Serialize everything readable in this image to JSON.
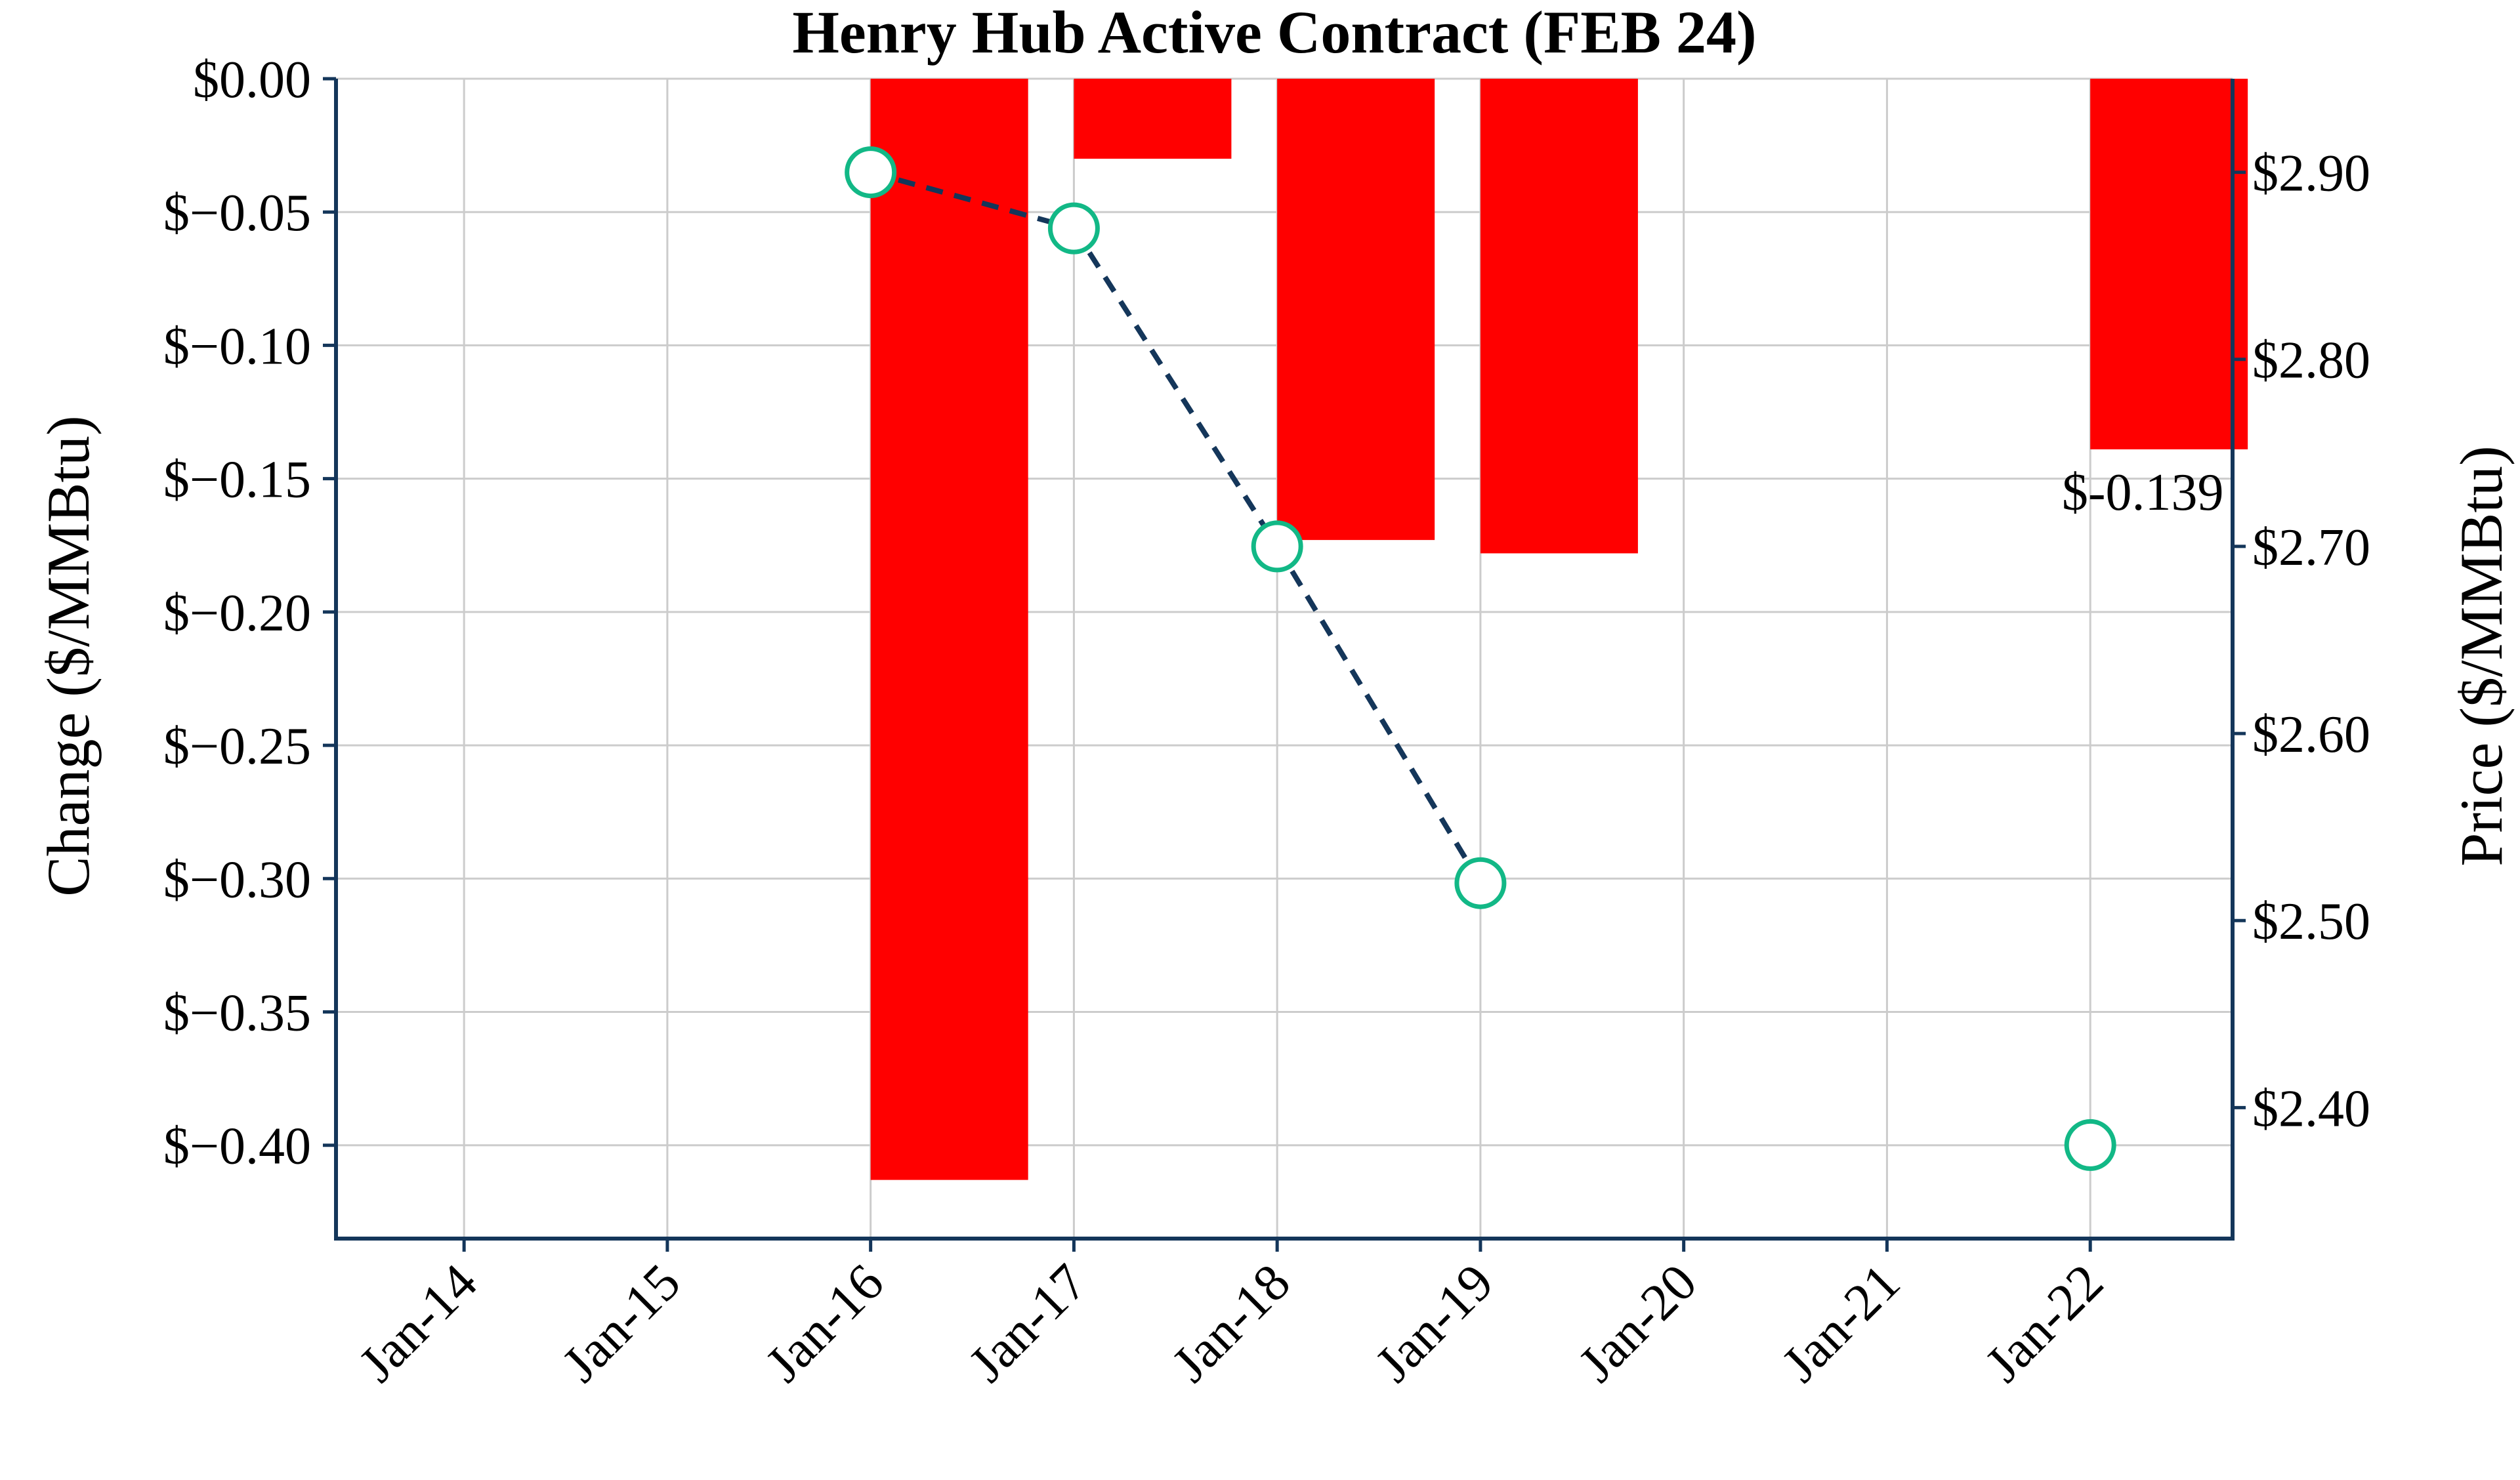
{
  "chart_data": {
    "type": "bar",
    "title": "Henry Hub Active Contract (FEB 24)",
    "categories": [
      "Jan-14",
      "Jan-15",
      "Jan-16",
      "Jan-17",
      "Jan-18",
      "Jan-19",
      "Jan-20",
      "Jan-21",
      "Jan-22"
    ],
    "series": [
      {
        "name": "Change",
        "type": "bar",
        "axis": "left",
        "color": "#ff0000",
        "values": [
          null,
          null,
          -0.413,
          -0.03,
          -0.173,
          -0.178,
          null,
          null,
          -0.139
        ]
      },
      {
        "name": "Price",
        "type": "line",
        "axis": "right",
        "color": "#12b886",
        "line_color": "#14365a",
        "line_style": "dashed",
        "values": [
          null,
          null,
          2.9,
          2.87,
          2.7,
          2.52,
          null,
          null,
          2.38
        ]
      }
    ],
    "ylabel": "Change ($/MMBtu)",
    "ylim": [
      -0.435,
      0.0
    ],
    "yticks": [
      0.0,
      -0.05,
      -0.1,
      -0.15,
      -0.2,
      -0.25,
      -0.3,
      -0.35,
      -0.4
    ],
    "ytick_labels": [
      "$0.00",
      "$−0.05",
      "$−0.10",
      "$−0.15",
      "$−0.20",
      "$−0.25",
      "$−0.30",
      "$−0.35",
      "$−0.40"
    ],
    "y2label": "Price ($/MMBtu)",
    "y2lim": [
      2.33,
      2.95
    ],
    "y2ticks": [
      2.4,
      2.5,
      2.6,
      2.7,
      2.8,
      2.9
    ],
    "y2tick_labels": [
      "$2.40",
      "$2.50",
      "$2.60",
      "$2.70",
      "$2.80",
      "$2.90"
    ],
    "annotations": [
      {
        "category": "Jan-22",
        "text": "$-0.139"
      }
    ],
    "grid": true,
    "legend": "none"
  }
}
